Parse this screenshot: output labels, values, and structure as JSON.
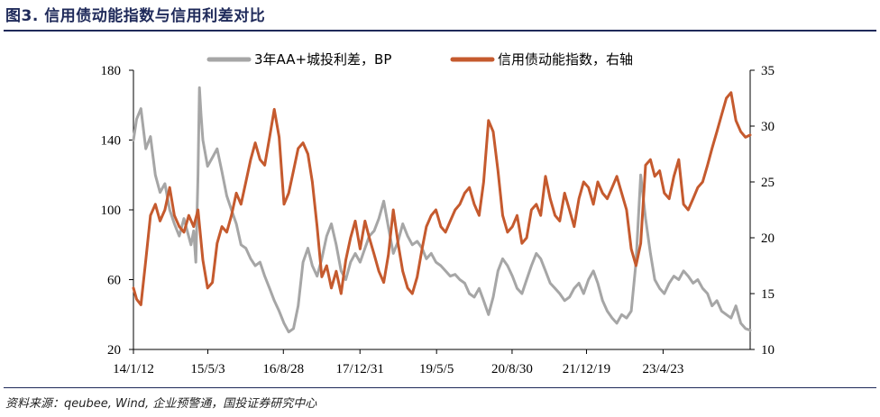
{
  "figure": {
    "title": "图3. 信用债动能指数与信用利差对比",
    "source": "资料来源：qeubee, Wind, 企业预警通，国投证券研究中心"
  },
  "chart_data": {
    "type": "line",
    "x_tick_labels": [
      "14/1/12",
      "15/5/3",
      "16/8/28",
      "17/12/31",
      "19/5/5",
      "20/8/30",
      "21/12/19",
      "23/4/23"
    ],
    "x_tick_dates": [
      "2014-01-12",
      "2015-05-03",
      "2016-08-28",
      "2017-12-31",
      "2019-05-05",
      "2020-08-30",
      "2021-12-19",
      "2023-04-23"
    ],
    "x_range": [
      "2014-01-12",
      "2024-10-31"
    ],
    "y_left": {
      "range": [
        20,
        180
      ],
      "ticks": [
        20,
        60,
        100,
        140,
        180
      ],
      "tick_labels": [
        "20",
        "60",
        "100",
        "140",
        "180"
      ]
    },
    "y_right": {
      "range": [
        10,
        35
      ],
      "ticks": [
        10,
        15,
        20,
        25,
        30,
        35
      ],
      "tick_labels": [
        "10",
        "15",
        "20",
        "25",
        "30",
        "35"
      ]
    },
    "grid": false,
    "legend_position": "top-center",
    "series": [
      {
        "name": "3年AA+城投利差，BP",
        "axis": "left",
        "color": "#a6a6a6",
        "points": [
          [
            "2014-01-12",
            140
          ],
          [
            "2014-02-01",
            152
          ],
          [
            "2014-03-01",
            158
          ],
          [
            "2014-04-01",
            135
          ],
          [
            "2014-05-01",
            142
          ],
          [
            "2014-06-01",
            120
          ],
          [
            "2014-07-01",
            110
          ],
          [
            "2014-08-01",
            115
          ],
          [
            "2014-09-01",
            100
          ],
          [
            "2014-10-01",
            92
          ],
          [
            "2014-11-01",
            85
          ],
          [
            "2014-12-01",
            95
          ],
          [
            "2015-01-15",
            80
          ],
          [
            "2015-02-01",
            88
          ],
          [
            "2015-02-15",
            70
          ],
          [
            "2015-03-01",
            120
          ],
          [
            "2015-03-10",
            170
          ],
          [
            "2015-03-20",
            155
          ],
          [
            "2015-04-01",
            140
          ],
          [
            "2015-05-01",
            125
          ],
          [
            "2015-06-01",
            130
          ],
          [
            "2015-07-01",
            135
          ],
          [
            "2015-08-01",
            122
          ],
          [
            "2015-09-01",
            108
          ],
          [
            "2015-10-01",
            100
          ],
          [
            "2015-11-01",
            92
          ],
          [
            "2015-12-01",
            80
          ],
          [
            "2016-01-01",
            78
          ],
          [
            "2016-02-01",
            72
          ],
          [
            "2016-03-01",
            68
          ],
          [
            "2016-04-01",
            70
          ],
          [
            "2016-05-01",
            62
          ],
          [
            "2016-06-01",
            55
          ],
          [
            "2016-07-01",
            48
          ],
          [
            "2016-08-01",
            42
          ],
          [
            "2016-09-01",
            35
          ],
          [
            "2016-10-01",
            30
          ],
          [
            "2016-11-01",
            32
          ],
          [
            "2016-12-01",
            45
          ],
          [
            "2017-01-01",
            70
          ],
          [
            "2017-02-01",
            78
          ],
          [
            "2017-03-01",
            68
          ],
          [
            "2017-04-01",
            62
          ],
          [
            "2017-05-01",
            72
          ],
          [
            "2017-06-01",
            85
          ],
          [
            "2017-07-01",
            92
          ],
          [
            "2017-08-01",
            80
          ],
          [
            "2017-09-01",
            65
          ],
          [
            "2017-10-01",
            60
          ],
          [
            "2017-11-01",
            70
          ],
          [
            "2017-12-01",
            75
          ],
          [
            "2018-01-01",
            70
          ],
          [
            "2018-02-01",
            78
          ],
          [
            "2018-03-01",
            85
          ],
          [
            "2018-04-01",
            88
          ],
          [
            "2018-05-01",
            95
          ],
          [
            "2018-06-01",
            105
          ],
          [
            "2018-07-01",
            90
          ],
          [
            "2018-08-01",
            75
          ],
          [
            "2018-09-01",
            82
          ],
          [
            "2018-10-01",
            92
          ],
          [
            "2018-11-01",
            85
          ],
          [
            "2018-12-01",
            80
          ],
          [
            "2019-01-01",
            82
          ],
          [
            "2019-02-01",
            78
          ],
          [
            "2019-03-01",
            72
          ],
          [
            "2019-04-01",
            75
          ],
          [
            "2019-05-01",
            70
          ],
          [
            "2019-06-01",
            68
          ],
          [
            "2019-07-01",
            65
          ],
          [
            "2019-08-01",
            62
          ],
          [
            "2019-09-01",
            63
          ],
          [
            "2019-10-01",
            60
          ],
          [
            "2019-11-01",
            58
          ],
          [
            "2019-12-01",
            52
          ],
          [
            "2020-01-01",
            50
          ],
          [
            "2020-02-01",
            55
          ],
          [
            "2020-03-01",
            48
          ],
          [
            "2020-04-01",
            40
          ],
          [
            "2020-05-01",
            50
          ],
          [
            "2020-06-01",
            65
          ],
          [
            "2020-07-01",
            72
          ],
          [
            "2020-08-01",
            68
          ],
          [
            "2020-09-01",
            62
          ],
          [
            "2020-10-01",
            55
          ],
          [
            "2020-11-01",
            52
          ],
          [
            "2020-12-01",
            60
          ],
          [
            "2021-01-01",
            68
          ],
          [
            "2021-02-01",
            75
          ],
          [
            "2021-03-01",
            72
          ],
          [
            "2021-04-01",
            65
          ],
          [
            "2021-05-01",
            58
          ],
          [
            "2021-06-01",
            55
          ],
          [
            "2021-07-01",
            52
          ],
          [
            "2021-08-01",
            48
          ],
          [
            "2021-09-01",
            50
          ],
          [
            "2021-10-01",
            55
          ],
          [
            "2021-11-01",
            58
          ],
          [
            "2021-12-01",
            52
          ],
          [
            "2022-01-01",
            60
          ],
          [
            "2022-02-01",
            65
          ],
          [
            "2022-03-01",
            58
          ],
          [
            "2022-04-01",
            48
          ],
          [
            "2022-05-01",
            42
          ],
          [
            "2022-06-01",
            38
          ],
          [
            "2022-07-01",
            35
          ],
          [
            "2022-08-01",
            40
          ],
          [
            "2022-09-01",
            38
          ],
          [
            "2022-10-01",
            42
          ],
          [
            "2022-11-01",
            70
          ],
          [
            "2022-12-01",
            120
          ],
          [
            "2023-01-01",
            95
          ],
          [
            "2023-02-01",
            75
          ],
          [
            "2023-03-01",
            60
          ],
          [
            "2023-04-01",
            55
          ],
          [
            "2023-05-01",
            52
          ],
          [
            "2023-06-01",
            58
          ],
          [
            "2023-07-01",
            62
          ],
          [
            "2023-08-01",
            60
          ],
          [
            "2023-09-01",
            65
          ],
          [
            "2023-10-01",
            62
          ],
          [
            "2023-11-01",
            58
          ],
          [
            "2023-12-01",
            60
          ],
          [
            "2024-01-01",
            55
          ],
          [
            "2024-02-01",
            52
          ],
          [
            "2024-03-01",
            45
          ],
          [
            "2024-04-01",
            48
          ],
          [
            "2024-05-01",
            42
          ],
          [
            "2024-06-01",
            40
          ],
          [
            "2024-07-01",
            38
          ],
          [
            "2024-08-01",
            45
          ],
          [
            "2024-09-01",
            35
          ],
          [
            "2024-10-01",
            32
          ],
          [
            "2024-10-31",
            31
          ]
        ]
      },
      {
        "name": "信用债动能指数，右轴",
        "axis": "right",
        "color": "#c55a2e",
        "points": [
          [
            "2014-01-12",
            15.5
          ],
          [
            "2014-02-01",
            14.5
          ],
          [
            "2014-03-01",
            14.0
          ],
          [
            "2014-04-01",
            18.0
          ],
          [
            "2014-05-01",
            22.0
          ],
          [
            "2014-06-01",
            23.0
          ],
          [
            "2014-07-01",
            21.5
          ],
          [
            "2014-08-01",
            22.5
          ],
          [
            "2014-09-01",
            24.5
          ],
          [
            "2014-10-01",
            22.0
          ],
          [
            "2014-11-01",
            21.0
          ],
          [
            "2014-12-01",
            20.5
          ],
          [
            "2015-01-01",
            22.0
          ],
          [
            "2015-02-01",
            21.0
          ],
          [
            "2015-03-01",
            22.5
          ],
          [
            "2015-04-01",
            18.0
          ],
          [
            "2015-05-01",
            15.5
          ],
          [
            "2015-06-01",
            16.0
          ],
          [
            "2015-07-01",
            19.5
          ],
          [
            "2015-08-01",
            21.0
          ],
          [
            "2015-09-01",
            20.5
          ],
          [
            "2015-10-01",
            22.0
          ],
          [
            "2015-11-01",
            24.0
          ],
          [
            "2015-12-01",
            23.0
          ],
          [
            "2016-01-01",
            25.0
          ],
          [
            "2016-02-01",
            27.0
          ],
          [
            "2016-03-01",
            28.5
          ],
          [
            "2016-04-01",
            27.0
          ],
          [
            "2016-05-01",
            26.5
          ],
          [
            "2016-06-01",
            29.0
          ],
          [
            "2016-07-01",
            31.5
          ],
          [
            "2016-08-01",
            29.0
          ],
          [
            "2016-09-01",
            23.0
          ],
          [
            "2016-10-01",
            24.0
          ],
          [
            "2016-11-01",
            26.0
          ],
          [
            "2016-12-01",
            28.0
          ],
          [
            "2017-01-01",
            28.5
          ],
          [
            "2017-02-01",
            27.5
          ],
          [
            "2017-03-01",
            25.0
          ],
          [
            "2017-04-01",
            21.0
          ],
          [
            "2017-05-01",
            16.5
          ],
          [
            "2017-06-01",
            17.5
          ],
          [
            "2017-07-01",
            15.5
          ],
          [
            "2017-08-01",
            17.0
          ],
          [
            "2017-09-01",
            15.0
          ],
          [
            "2017-10-01",
            18.0
          ],
          [
            "2017-11-01",
            20.0
          ],
          [
            "2017-12-01",
            21.5
          ],
          [
            "2018-01-01",
            19.0
          ],
          [
            "2018-02-01",
            21.5
          ],
          [
            "2018-03-01",
            20.0
          ],
          [
            "2018-04-01",
            18.5
          ],
          [
            "2018-05-01",
            17.0
          ],
          [
            "2018-06-01",
            16.0
          ],
          [
            "2018-07-01",
            18.5
          ],
          [
            "2018-08-01",
            22.5
          ],
          [
            "2018-09-01",
            19.5
          ],
          [
            "2018-10-01",
            17.0
          ],
          [
            "2018-11-01",
            15.5
          ],
          [
            "2018-12-01",
            15.0
          ],
          [
            "2019-01-01",
            16.5
          ],
          [
            "2019-02-01",
            19.0
          ],
          [
            "2019-03-01",
            21.0
          ],
          [
            "2019-04-01",
            22.0
          ],
          [
            "2019-05-01",
            22.5
          ],
          [
            "2019-06-01",
            21.0
          ],
          [
            "2019-07-01",
            20.5
          ],
          [
            "2019-08-01",
            21.5
          ],
          [
            "2019-09-01",
            22.5
          ],
          [
            "2019-10-01",
            23.0
          ],
          [
            "2019-11-01",
            24.0
          ],
          [
            "2019-12-01",
            24.5
          ],
          [
            "2020-01-01",
            23.0
          ],
          [
            "2020-02-01",
            22.0
          ],
          [
            "2020-03-01",
            25.0
          ],
          [
            "2020-04-01",
            30.5
          ],
          [
            "2020-05-01",
            29.5
          ],
          [
            "2020-06-01",
            26.0
          ],
          [
            "2020-07-01",
            22.0
          ],
          [
            "2020-08-01",
            20.5
          ],
          [
            "2020-09-01",
            21.0
          ],
          [
            "2020-10-01",
            22.0
          ],
          [
            "2020-11-01",
            19.5
          ],
          [
            "2020-12-01",
            20.0
          ],
          [
            "2021-01-01",
            22.5
          ],
          [
            "2021-02-01",
            23.0
          ],
          [
            "2021-03-01",
            22.0
          ],
          [
            "2021-04-01",
            25.5
          ],
          [
            "2021-05-01",
            23.5
          ],
          [
            "2021-06-01",
            22.0
          ],
          [
            "2021-07-01",
            21.5
          ],
          [
            "2021-08-01",
            24.0
          ],
          [
            "2021-09-01",
            22.5
          ],
          [
            "2021-10-01",
            21.0
          ],
          [
            "2021-11-01",
            23.5
          ],
          [
            "2021-12-01",
            25.0
          ],
          [
            "2022-01-01",
            24.5
          ],
          [
            "2022-02-01",
            23.0
          ],
          [
            "2022-03-01",
            25.0
          ],
          [
            "2022-04-01",
            24.0
          ],
          [
            "2022-05-01",
            23.5
          ],
          [
            "2022-06-01",
            24.5
          ],
          [
            "2022-07-01",
            25.5
          ],
          [
            "2022-08-01",
            24.0
          ],
          [
            "2022-09-01",
            22.5
          ],
          [
            "2022-10-01",
            19.0
          ],
          [
            "2022-11-01",
            17.5
          ],
          [
            "2022-12-01",
            19.5
          ],
          [
            "2023-01-01",
            26.5
          ],
          [
            "2023-02-01",
            27.0
          ],
          [
            "2023-03-01",
            25.5
          ],
          [
            "2023-04-01",
            26.0
          ],
          [
            "2023-05-01",
            24.0
          ],
          [
            "2023-06-01",
            23.5
          ],
          [
            "2023-07-01",
            25.5
          ],
          [
            "2023-08-01",
            27.0
          ],
          [
            "2023-09-01",
            23.0
          ],
          [
            "2023-10-01",
            22.5
          ],
          [
            "2023-11-01",
            23.5
          ],
          [
            "2023-12-01",
            24.5
          ],
          [
            "2024-01-01",
            25.0
          ],
          [
            "2024-02-01",
            26.5
          ],
          [
            "2024-03-01",
            28.0
          ],
          [
            "2024-04-01",
            29.5
          ],
          [
            "2024-05-01",
            31.0
          ],
          [
            "2024-06-01",
            32.5
          ],
          [
            "2024-07-01",
            33.0
          ],
          [
            "2024-08-01",
            30.5
          ],
          [
            "2024-09-01",
            29.5
          ],
          [
            "2024-10-01",
            29.0
          ],
          [
            "2024-10-31",
            29.2
          ]
        ]
      }
    ]
  }
}
